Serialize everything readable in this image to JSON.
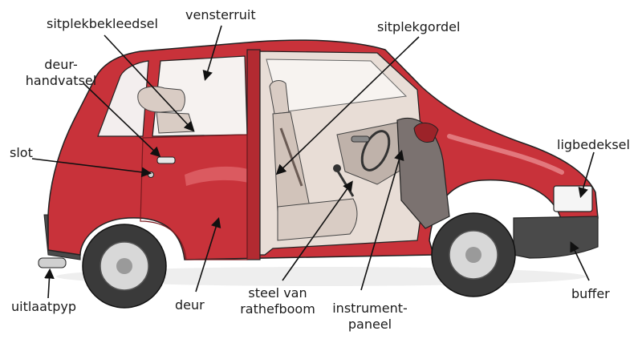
{
  "diagram": {
    "type": "labeled-illustration",
    "subject": "car",
    "colors": {
      "body": "#c8323a",
      "body_dark": "#9c2329",
      "body_light": "#e0646a",
      "interior": "#e8ddd6",
      "seat": "#d9ccc4",
      "tyre": "#3a3a3a",
      "rim": "#d8d8d8",
      "bumper": "#4a4a4a",
      "line": "#111111"
    },
    "labels": {
      "sitplekbekleedsel": "sitplekbekleedsel",
      "vensterruit": "vensterruit",
      "sitplekgordel": "sitplekgordel",
      "deurhandvatsel_1": "deur-",
      "deurhandvatsel_2": "handvatsel",
      "slot": "slot",
      "ligbedeksel": "ligbedeksel",
      "uitlaatpyp": "uitlaatpyp",
      "deur": "deur",
      "steel_1": "steel van",
      "steel_2": "rathefboom",
      "instrument_1": "instrument-",
      "instrument_2": "paneel",
      "buffer": "buffer"
    }
  }
}
